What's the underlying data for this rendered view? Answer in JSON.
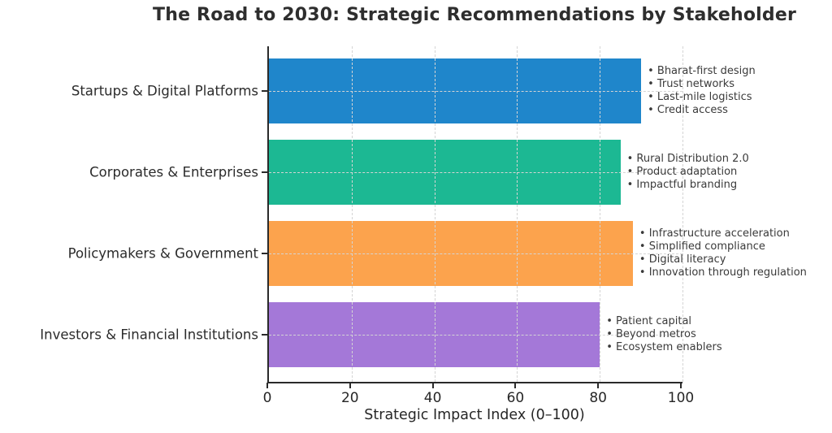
{
  "title": "The Road to 2030: Strategic Recommendations by Stakeholder",
  "xlabel": "Strategic Impact Index (0–100)",
  "chart_data": {
    "type": "bar",
    "orientation": "horizontal",
    "title": "The Road to 2030: Strategic Recommendations by Stakeholder",
    "xlabel": "Strategic Impact Index (0–100)",
    "xlim": [
      0,
      100
    ],
    "xticks": [
      0,
      20,
      40,
      60,
      80,
      100
    ],
    "grid": "dashed-both-axes",
    "legend": "none",
    "categories": [
      "Startups & Digital Platforms",
      "Corporates & Enterprises",
      "Policymakers & Government",
      "Investors & Financial Institutions"
    ],
    "values": [
      90,
      85,
      88,
      80
    ],
    "bar_colors": [
      "#1f86cb",
      "#1cb893",
      "#fca34d",
      "#a478d8"
    ],
    "annotations": [
      [
        "Bharat-first design",
        "Trust networks",
        "Last-mile logistics",
        "Credit access"
      ],
      [
        "Rural Distribution 2.0",
        "Product adaptation",
        "Impactful branding"
      ],
      [
        "Infrastructure acceleration",
        "Simplified compliance",
        "Digital literacy",
        "Innovation through regulation"
      ],
      [
        "Patient capital",
        "Beyond metros",
        "Ecosystem enablers"
      ]
    ],
    "bullet": "•"
  }
}
